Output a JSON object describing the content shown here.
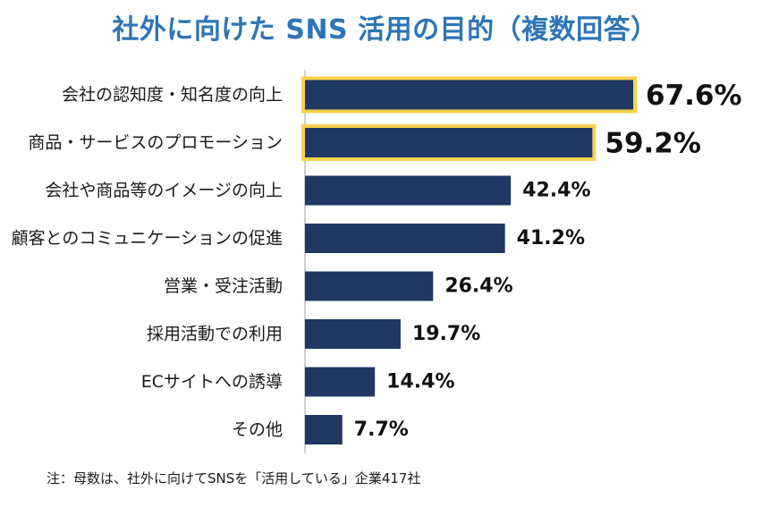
{
  "chart_data": {
    "type": "bar",
    "orientation": "horizontal",
    "title": "社外に向けた SNS 活用の目的（複数回答）",
    "categories": [
      "会社の認知度・知名度の向上",
      "商品・サービスのプロモーション",
      "会社や商品等のイメージの向上",
      "顧客とのコミュニケーションの促進",
      "営業・受注活動",
      "採用活動での利用",
      "ECサイトへの誘導",
      "その他"
    ],
    "values": [
      67.6,
      59.2,
      42.4,
      41.2,
      26.4,
      19.7,
      14.4,
      7.7
    ],
    "value_labels": [
      "67.6%",
      "59.2%",
      "42.4%",
      "41.2%",
      "26.4%",
      "19.7%",
      "14.4%",
      "7.7%"
    ],
    "highlighted": [
      true,
      true,
      false,
      false,
      false,
      false,
      false,
      false
    ],
    "unit": "%",
    "xlim": [
      0,
      67.6
    ],
    "grid": false,
    "legend": "none",
    "note": "注：母数は、社外に向けてSNSを「活用している」企業417社"
  },
  "colors": {
    "title": "#2e75b6",
    "bar": "#1f3864",
    "highlight_border": "#f7d14a",
    "axis": "#bfbfbf",
    "text": "#1a1a1a"
  }
}
